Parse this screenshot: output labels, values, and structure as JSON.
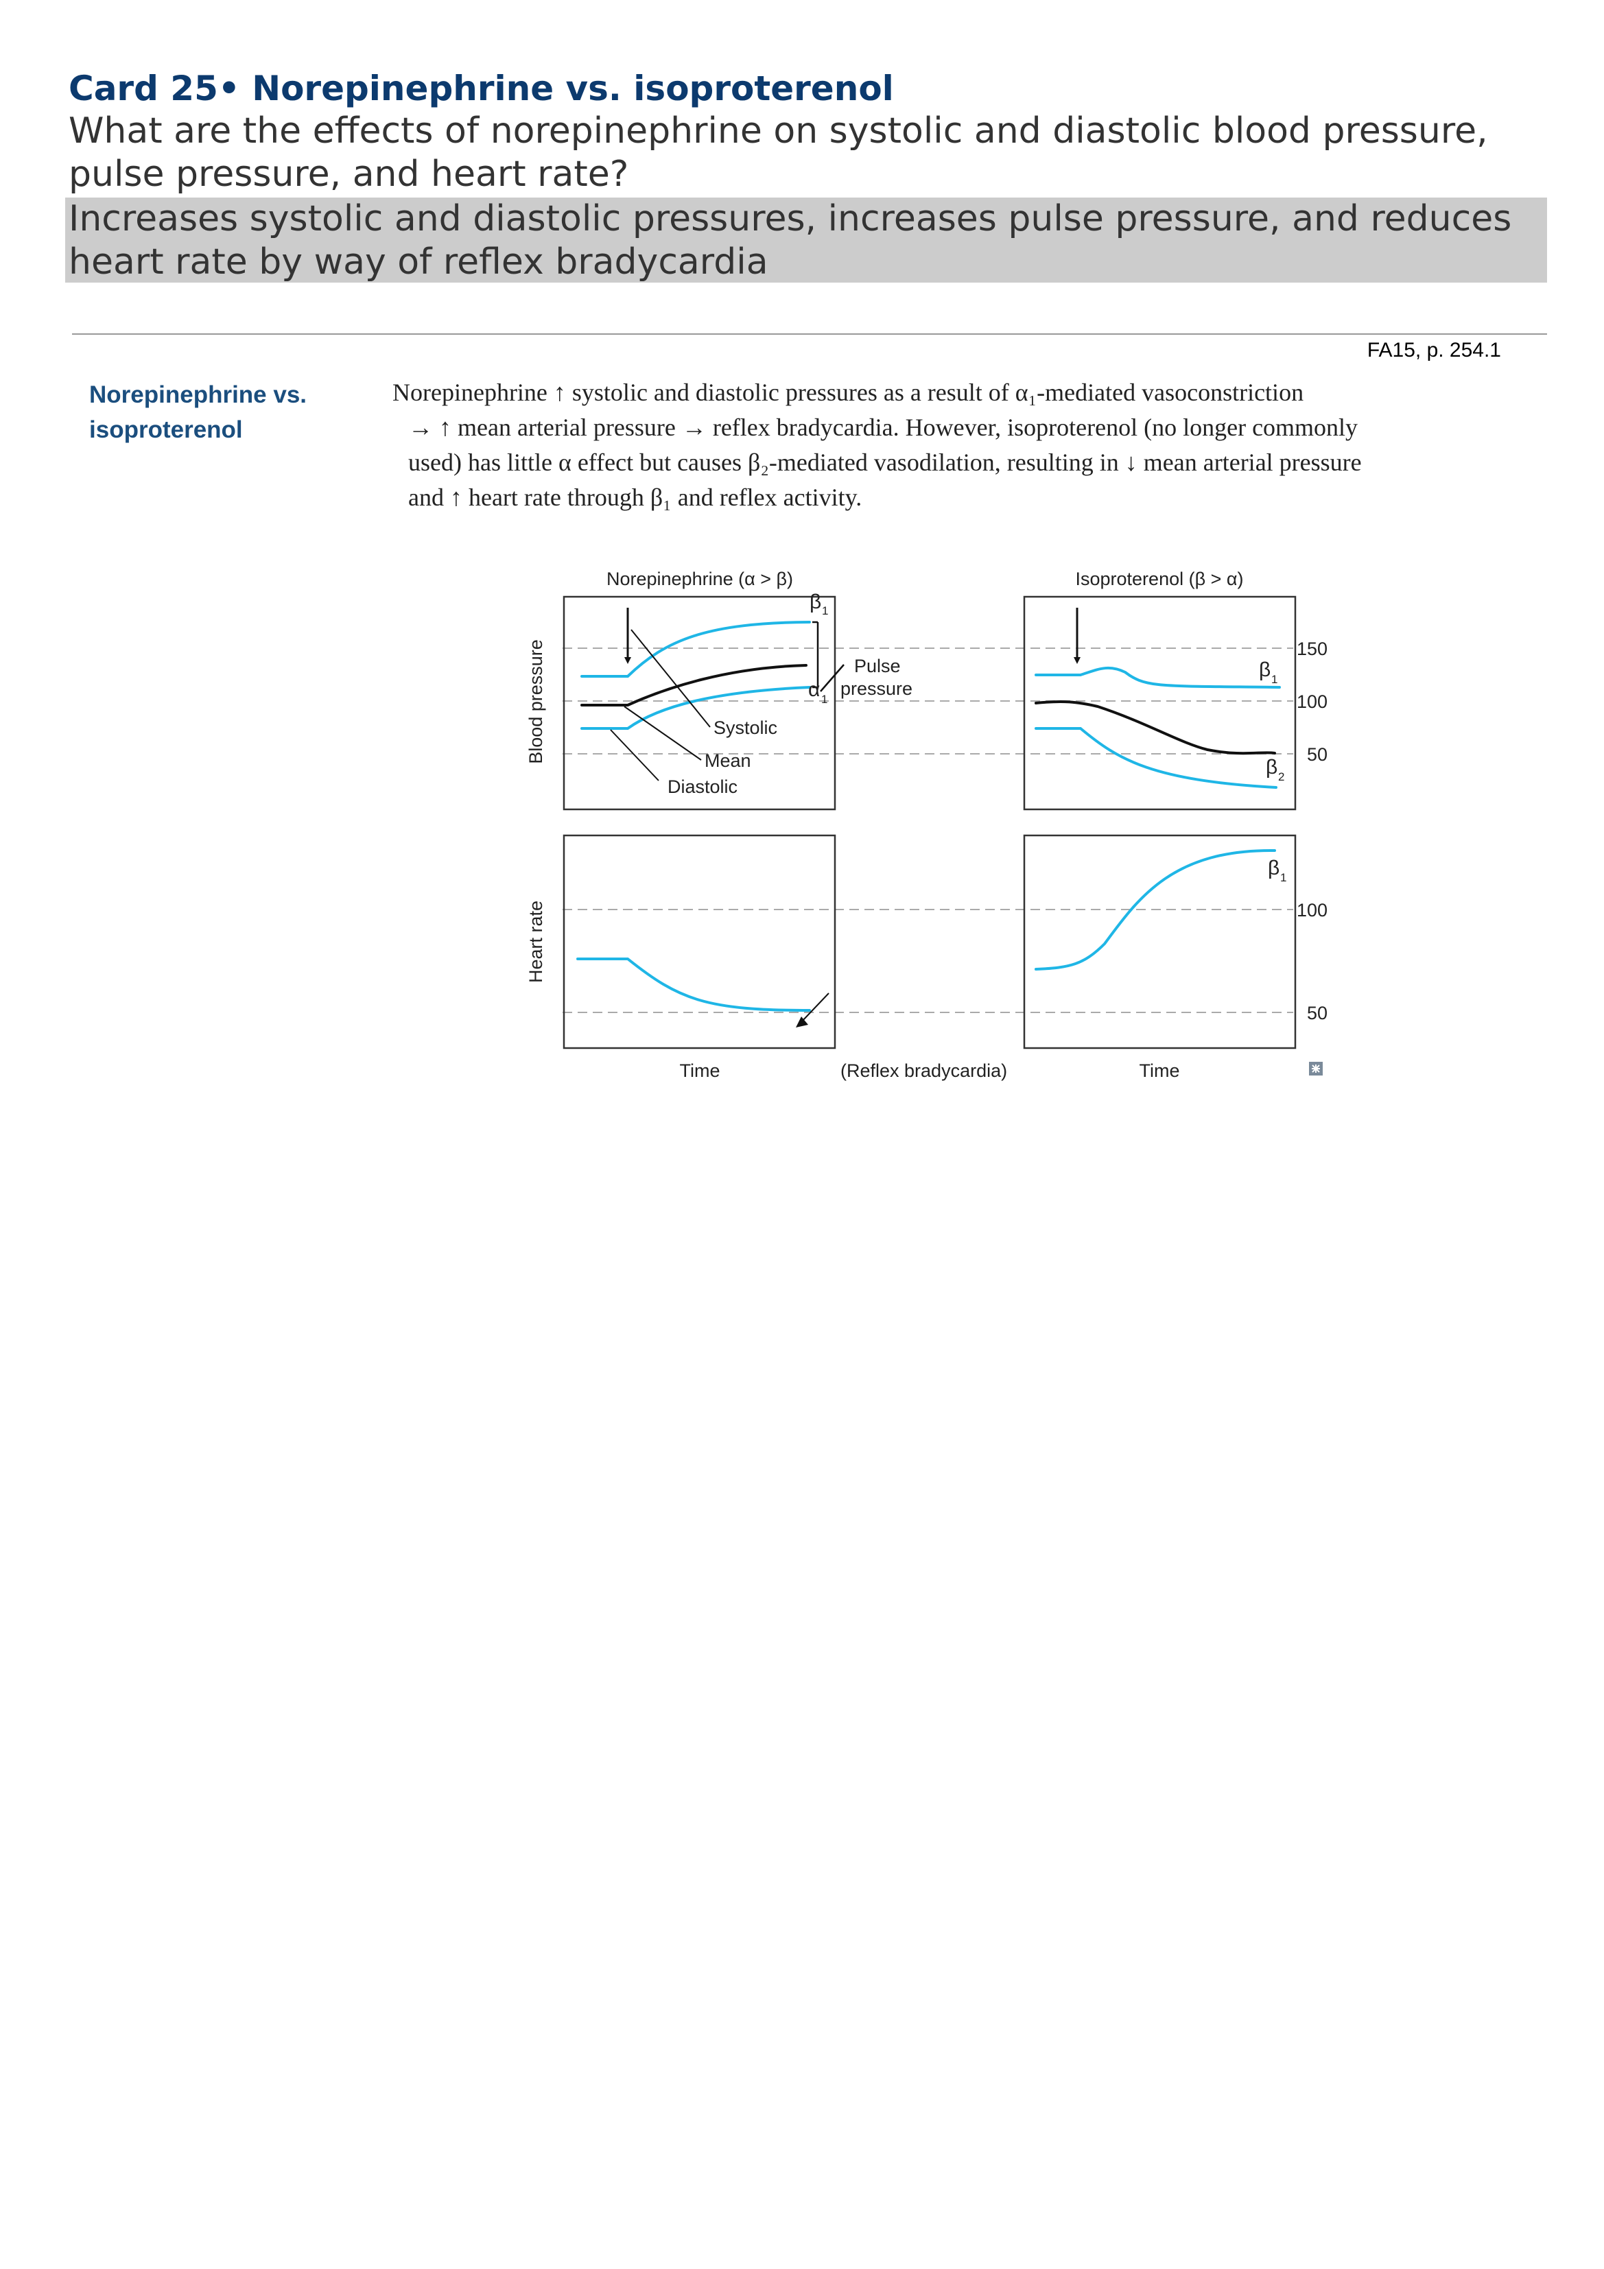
{
  "card": {
    "title": "Card 25• Norepinephrine vs. isoproterenol",
    "question": "What are the effects of norepinephrine on systolic and diastolic blood pressure, pulse pressure, and heart rate?",
    "answer": "Increases systolic and diastolic pressures, increases pulse pressure, and reduces heart rate by way of reflex bradycardia"
  },
  "reference": "FA15, p. 254.1",
  "section": {
    "heading": "Norepinephrine vs. isoproterenol",
    "body_lines": [
      "Norepinephrine ↑ systolic and diastolic pressures as a result of α₁-mediated vasoconstriction",
      "→ ↑ mean arterial pressure → reflex bradycardia. However, isoproterenol (no longer commonly",
      "used) has little α effect but causes β₂-mediated vasodilation, resulting in ↓ mean arterial pressure",
      "and ↑ heart rate through β₁ and reflex activity."
    ]
  },
  "figure": {
    "panel_titles": [
      "Norepinephrine (α > β)",
      "Isoproterenol (β > α)"
    ],
    "y_labels": [
      "Blood pressure",
      "Heart rate"
    ],
    "x_labels": [
      "Time",
      "Time"
    ],
    "bp_ticks": [
      "150",
      "100",
      "50"
    ],
    "hr_ticks": [
      "100",
      "50"
    ],
    "labels": {
      "pulse_pressure": [
        "Pulse",
        "pressure"
      ],
      "systolic": "Systolic",
      "mean": "Mean",
      "diastolic": "Diastolic",
      "reflex_bradycardia": "(Reflex bradycardia)",
      "beta": "β",
      "alpha": "α",
      "sub_1": "1",
      "sub_2": "2"
    },
    "colors": {
      "curve": "#1fb6e6",
      "mean": "#111111",
      "grid": "#aaaaaa"
    }
  }
}
